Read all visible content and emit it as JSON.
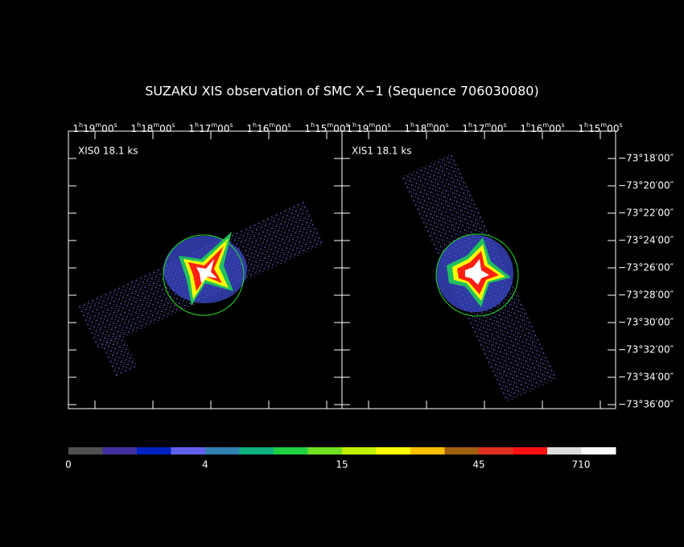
{
  "title": "SUZAKU XIS observation of SMC X−1  (Sequence 706030080)",
  "panels": [
    {
      "label": "XIS0 18.1 ks",
      "ra_ticks": [
        "1h19m00s",
        "1h18m00s",
        "1h17m00s",
        "1h16m00s",
        "1h15m00s"
      ]
    },
    {
      "label": "XIS1 18.1 ks",
      "ra_ticks": [
        "1h19m00s",
        "1h18m00s",
        "1h17m00s",
        "1h16m00s",
        "1h15m00s"
      ]
    }
  ],
  "dec_ticks": [
    "−73°18′00″",
    "−73°20′00″",
    "−73°22′00″",
    "−73°24′00″",
    "−73°26′00″",
    "−73°28′00″",
    "−73°30′00″",
    "−73°32′00″",
    "−73°34′00″",
    "−73°36′00″"
  ],
  "colorbar": {
    "labels": [
      "0",
      "4",
      "15",
      "45",
      "710"
    ],
    "colors": [
      "#505050",
      "#4030a0",
      "#0020c0",
      "#6060f0",
      "#3080b0",
      "#10b080",
      "#20d040",
      "#70e020",
      "#c0f000",
      "#ffff00",
      "#ffc000",
      "#a06010",
      "#e03020",
      "#ff1010",
      "#dddddd",
      "#ffffff"
    ]
  }
}
